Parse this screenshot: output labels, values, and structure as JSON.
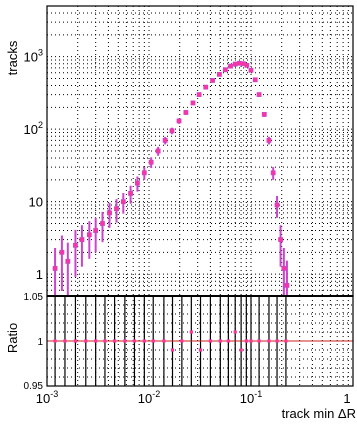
{
  "chart_data": [
    {
      "type": "scatter",
      "panel": "main",
      "ylabel": "tracks",
      "x_scale": "log",
      "y_scale": "log",
      "xlim": [
        0.001,
        1
      ],
      "ylim": [
        0.5,
        5000
      ],
      "grid": true,
      "x_tick_labels": [
        {
          "value": 0.001,
          "base": "10",
          "exp": "-3"
        },
        {
          "value": 0.01,
          "base": "10",
          "exp": "-2"
        },
        {
          "value": 0.1,
          "base": "10",
          "exp": "-1"
        },
        {
          "value": 1,
          "base": "1",
          "exp": ""
        }
      ],
      "y_tick_labels": [
        {
          "value": 1,
          "base": "1",
          "exp": ""
        },
        {
          "value": 10,
          "base": "10",
          "exp": ""
        },
        {
          "value": 100,
          "base": "10",
          "exp": "2"
        },
        {
          "value": 1000,
          "base": "10",
          "exp": "3"
        }
      ],
      "series": [
        {
          "color": "#cc44cc",
          "marker_color": "#ff3399",
          "x": [
            0.0012,
            0.0014,
            0.0016,
            0.0019,
            0.0022,
            0.0026,
            0.003,
            0.0035,
            0.0041,
            0.0048,
            0.0056,
            0.0066,
            0.0077,
            0.009,
            0.0105,
            0.0123,
            0.0144,
            0.0168,
            0.0197,
            0.023,
            0.027,
            0.031,
            0.036,
            0.042,
            0.049,
            0.056,
            0.063,
            0.07,
            0.077,
            0.084,
            0.091,
            0.1,
            0.11,
            0.12,
            0.135,
            0.15,
            0.165,
            0.18,
            0.195,
            0.21,
            0.225
          ],
          "y": [
            1.2,
            2.0,
            1.5,
            2.5,
            3.0,
            3.5,
            4.0,
            5.0,
            7.0,
            8.0,
            10.0,
            13.0,
            18.0,
            25.0,
            35.0,
            50.0,
            70.0,
            95.0,
            130.0,
            170.0,
            230.0,
            300.0,
            380.0,
            470.0,
            570.0,
            660.0,
            740.0,
            790.0,
            810.0,
            800.0,
            760.0,
            650.0,
            480.0,
            300.0,
            160.0,
            70.0,
            25.0,
            9.0,
            3.0,
            1.2,
            0.7
          ]
        }
      ]
    },
    {
      "type": "scatter",
      "panel": "ratio",
      "xlabel": "track min  ΔR",
      "ylabel": "Ratio",
      "x_scale": "log",
      "xlim": [
        0.001,
        1
      ],
      "ylim": [
        0.95,
        1.05
      ],
      "grid": true,
      "y_tick_labels": [
        "0.95",
        "1",
        "1.05"
      ],
      "reference_line": 1.0,
      "series": [
        {
          "color": "#000000",
          "marker_color": "#ff3399",
          "x": [
            0.0012,
            0.0015,
            0.0019,
            0.0024,
            0.003,
            0.0037,
            0.0046,
            0.0058,
            0.0072,
            0.009,
            0.011,
            0.014,
            0.017,
            0.021,
            0.026,
            0.032,
            0.04,
            0.05,
            0.06,
            0.07,
            0.08,
            0.09,
            0.1,
            0.12,
            0.15,
            0.18,
            0.22
          ],
          "y": [
            1.0,
            1.0,
            1.0,
            1.0,
            1.0,
            1.0,
            1.0,
            1.0,
            1.0,
            1.0,
            1.0,
            1.0,
            0.99,
            1.0,
            1.01,
            0.99,
            1.0,
            1.0,
            1.0,
            1.01,
            0.99,
            1.0,
            1.0,
            1.0,
            1.0,
            1.0,
            1.0
          ]
        }
      ]
    }
  ]
}
